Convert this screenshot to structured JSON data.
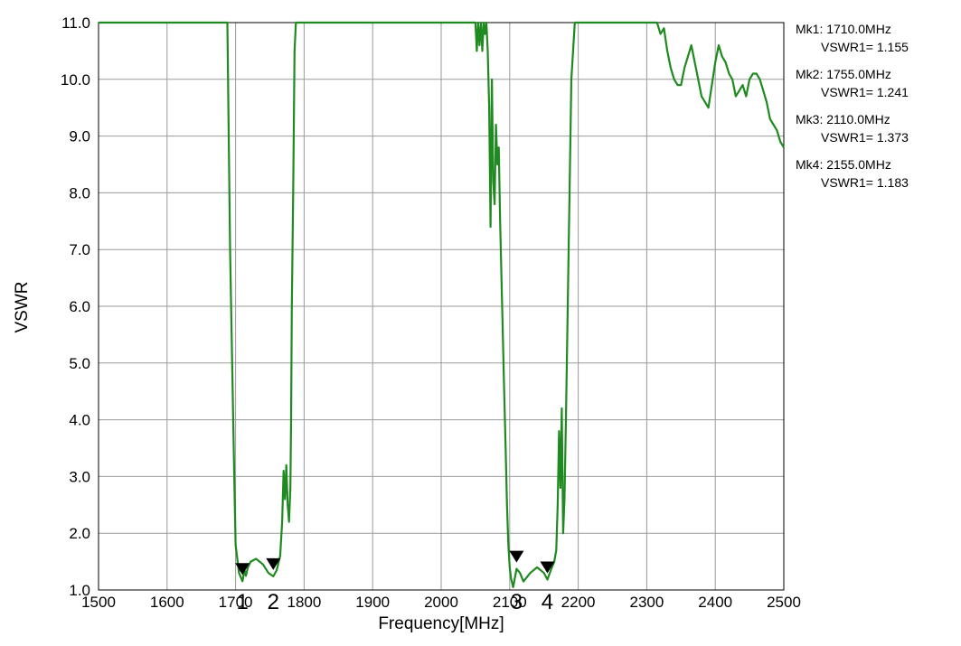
{
  "chart_data": {
    "type": "line",
    "title": "",
    "xlabel": "Frequency[MHz]",
    "ylabel": "VSWR",
    "xlim": [
      1500,
      2500
    ],
    "ylim": [
      1.0,
      11.0
    ],
    "grid": true,
    "x_ticks": [
      "1500",
      "1600",
      "1700",
      "1800",
      "1900",
      "2000",
      "2100",
      "2200",
      "2300",
      "2400",
      "2500"
    ],
    "y_ticks": [
      "1.0",
      "2.0",
      "3.0",
      "4.0",
      "5.0",
      "6.0",
      "7.0",
      "8.0",
      "9.0",
      "10.0",
      "11.0"
    ],
    "line_color": "#1f8a1f",
    "series": [
      {
        "x": [
          1500,
          1600,
          1680,
          1688,
          1690,
          1692,
          1695,
          1698,
          1700,
          1705,
          1710,
          1713,
          1715,
          1718,
          1722,
          1730,
          1740,
          1748,
          1755,
          1760,
          1765,
          1768,
          1770,
          1772,
          1774,
          1776,
          1778,
          1780,
          1781,
          1782,
          1784,
          1786,
          1788,
          1790,
          1800,
          1900,
          2000,
          2050,
          2052,
          2054,
          2056,
          2058,
          2060,
          2062,
          2064,
          2066,
          2068,
          2070,
          2072,
          2074,
          2076,
          2078,
          2080,
          2082,
          2084,
          2086,
          2088,
          2090,
          2092,
          2094,
          2096,
          2098,
          2100,
          2102,
          2105,
          2110,
          2115,
          2120,
          2130,
          2140,
          2150,
          2155,
          2160,
          2165,
          2168,
          2170,
          2172,
          2174,
          2176,
          2178,
          2180,
          2182,
          2184,
          2186,
          2188,
          2190,
          2195,
          2200,
          2300,
          2315,
          2320,
          2325,
          2330,
          2335,
          2340,
          2345,
          2350,
          2355,
          2360,
          2365,
          2370,
          2375,
          2380,
          2385,
          2390,
          2395,
          2400,
          2405,
          2410,
          2415,
          2420,
          2425,
          2430,
          2435,
          2440,
          2445,
          2450,
          2455,
          2460,
          2465,
          2470,
          2475,
          2480,
          2485,
          2490,
          2495,
          2500
        ],
        "y": [
          11.0,
          11.0,
          11.0,
          11.0,
          9.0,
          7.0,
          5.0,
          3.0,
          1.8,
          1.3,
          1.155,
          1.35,
          1.25,
          1.4,
          1.5,
          1.55,
          1.45,
          1.3,
          1.241,
          1.35,
          1.6,
          2.2,
          3.1,
          2.6,
          3.2,
          2.5,
          2.2,
          2.8,
          4.0,
          6.0,
          8.0,
          10.5,
          11.0,
          11.0,
          11.0,
          11.0,
          11.0,
          11.0,
          10.5,
          11.0,
          10.6,
          11.0,
          10.5,
          11.0,
          10.8,
          11.0,
          10.5,
          9.5,
          7.4,
          10.0,
          8.2,
          7.8,
          9.2,
          8.5,
          8.8,
          7.5,
          6.5,
          5.5,
          4.5,
          3.5,
          2.5,
          1.8,
          1.4,
          1.2,
          1.05,
          1.373,
          1.3,
          1.15,
          1.3,
          1.4,
          1.3,
          1.183,
          1.35,
          1.5,
          1.7,
          2.5,
          3.8,
          2.8,
          4.2,
          2.0,
          2.6,
          4.0,
          5.5,
          7.0,
          8.5,
          10.0,
          11.0,
          11.0,
          11.0,
          11.0,
          10.8,
          10.9,
          10.5,
          10.2,
          10.0,
          9.9,
          9.9,
          10.2,
          10.4,
          10.6,
          10.3,
          10.0,
          9.7,
          9.6,
          9.5,
          9.9,
          10.3,
          10.6,
          10.4,
          10.3,
          10.1,
          10.0,
          9.7,
          9.8,
          9.9,
          9.7,
          10.0,
          10.1,
          10.1,
          10.0,
          9.8,
          9.6,
          9.3,
          9.2,
          9.1,
          8.9,
          8.8
        ]
      }
    ],
    "markers": [
      {
        "num": "1",
        "freq": 1710,
        "vswr": 1.155
      },
      {
        "num": "2",
        "freq": 1755,
        "vswr": 1.241
      },
      {
        "num": "3",
        "freq": 2110,
        "vswr": 1.373
      },
      {
        "num": "4",
        "freq": 2155,
        "vswr": 1.183
      }
    ]
  },
  "marker_readouts": [
    {
      "mk": "Mk1: 1710.0MHz",
      "val": "VSWR1= 1.155"
    },
    {
      "mk": "Mk2: 1755.0MHz",
      "val": "VSWR1= 1.241"
    },
    {
      "mk": "Mk3: 2110.0MHz",
      "val": "VSWR1= 1.373"
    },
    {
      "mk": "Mk4: 2155.0MHz",
      "val": "VSWR1= 1.183"
    }
  ]
}
